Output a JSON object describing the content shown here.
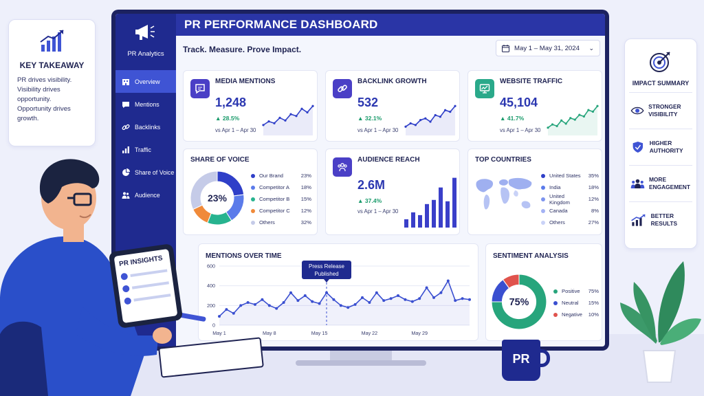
{
  "takeaway": {
    "title": "KEY TAKEAWAY",
    "lines": [
      "PR drives visibility.",
      "Visibility drives opportunity.",
      "Opportunity drives growth."
    ]
  },
  "sidebar": {
    "brand": "PR Analytics",
    "items": [
      {
        "label": "Overview",
        "icon": "building-icon",
        "active": true
      },
      {
        "label": "Mentions",
        "icon": "chat-icon",
        "active": false
      },
      {
        "label": "Backlinks",
        "icon": "link-icon",
        "active": false
      },
      {
        "label": "Traffic",
        "icon": "bar-chart-icon",
        "active": false
      },
      {
        "label": "Share of Voice",
        "icon": "pie-chart-icon",
        "active": false
      },
      {
        "label": "Audience",
        "icon": "people-icon",
        "active": false
      }
    ]
  },
  "header": {
    "title": "PR PERFORMANCE DASHBOARD",
    "tagline": "Track. Measure. Prove Impact.",
    "date_range": "May 1 – May 31, 2024"
  },
  "kpis": {
    "mentions": {
      "title": "MEDIA MENTIONS",
      "value": "1,248",
      "change": "▲ 28.5%",
      "vs": "vs Apr 1 – Apr 30",
      "spark": [
        20,
        28,
        24,
        36,
        30,
        44,
        40,
        56,
        48,
        62
      ]
    },
    "backlinks": {
      "title": "BACKLINK GROWTH",
      "value": "532",
      "change": "▲ 32.1%",
      "vs": "vs Apr 1 – Apr 30",
      "spark": [
        18,
        26,
        22,
        34,
        38,
        30,
        46,
        42,
        58,
        54,
        68
      ]
    },
    "traffic": {
      "title": "WEBSITE TRAFFIC",
      "value": "45,104",
      "change": "▲ 41.7%",
      "vs": "vs Apr 1 – Apr 30",
      "spark": [
        16,
        24,
        20,
        34,
        26,
        40,
        36,
        48,
        44,
        60,
        56,
        70
      ]
    }
  },
  "share_of_voice": {
    "title": "SHARE OF VOICE",
    "center": "23%",
    "entries": [
      {
        "name": "Our Brand",
        "pct": "23%",
        "value": 23,
        "color": "#2f3fc8"
      },
      {
        "name": "Competitor A",
        "pct": "18%",
        "value": 18,
        "color": "#5b7bea"
      },
      {
        "name": "Competitor B",
        "pct": "15%",
        "value": 15,
        "color": "#27b38f"
      },
      {
        "name": "Competitor C",
        "pct": "12%",
        "value": 12,
        "color": "#f08a3a"
      },
      {
        "name": "Others",
        "pct": "32%",
        "value": 32,
        "color": "#c5cbe8"
      }
    ]
  },
  "audience_reach": {
    "title": "AUDIENCE REACH",
    "value": "2.6M",
    "change": "▲ 37.4%",
    "vs": "vs Apr 1 – Apr 30",
    "bars": [
      12,
      22,
      18,
      34,
      40,
      58,
      38,
      72
    ]
  },
  "top_countries": {
    "title": "TOP COUNTRIES",
    "entries": [
      {
        "name": "United States",
        "pct": "35%",
        "color": "#2f3fc8"
      },
      {
        "name": "India",
        "pct": "18%",
        "color": "#5b7bea"
      },
      {
        "name": "United Kingdom",
        "pct": "12%",
        "color": "#7d94ef"
      },
      {
        "name": "Canada",
        "pct": "8%",
        "color": "#a3b2f4"
      },
      {
        "name": "Others",
        "pct": "27%",
        "color": "#c9d2f7"
      }
    ]
  },
  "chart_data": {
    "type": "line",
    "title": "MENTIONS OVER TIME",
    "ylim": [
      0,
      600
    ],
    "yticks": [
      "600",
      "400",
      "200",
      "0"
    ],
    "xticks": [
      "May 1",
      "May 8",
      "May 15",
      "May 22",
      "May 29"
    ],
    "values": [
      90,
      160,
      120,
      200,
      230,
      210,
      260,
      200,
      170,
      230,
      330,
      250,
      300,
      240,
      220,
      330,
      260,
      200,
      180,
      210,
      280,
      230,
      330,
      250,
      270,
      300,
      260,
      240,
      270,
      380,
      280,
      330,
      450,
      250,
      270,
      260
    ],
    "annotation": {
      "label": "Press Release Published",
      "day_index": 15
    }
  },
  "sentiment": {
    "title": "SENTIMENT ANALYSIS",
    "center": "75%",
    "entries": [
      {
        "name": "Positive",
        "pct": "75%",
        "value": 75,
        "color": "#27a57c"
      },
      {
        "name": "Neutral",
        "pct": "15%",
        "value": 15,
        "color": "#3a4fd0"
      },
      {
        "name": "Negative",
        "pct": "10%",
        "value": 10,
        "color": "#e0534d"
      }
    ]
  },
  "impact": {
    "title": "IMPACT SUMMARY",
    "items": [
      {
        "label": "STRONGER VISIBILITY",
        "icon": "eye-icon"
      },
      {
        "label": "HIGHER AUTHORITY",
        "icon": "shield-check-icon"
      },
      {
        "label": "MORE ENGAGEMENT",
        "icon": "people-group-icon"
      },
      {
        "label": "BETTER RESULTS",
        "icon": "growth-chart-icon"
      }
    ]
  },
  "illustration": {
    "tablet_title": "PR INSIGHTS",
    "mug_text": "PR"
  },
  "colors": {
    "primary": "#2a35a6",
    "sidebar": "#1f2a8f",
    "accent": "#3f54d4",
    "positive": "#1a9b6b"
  }
}
